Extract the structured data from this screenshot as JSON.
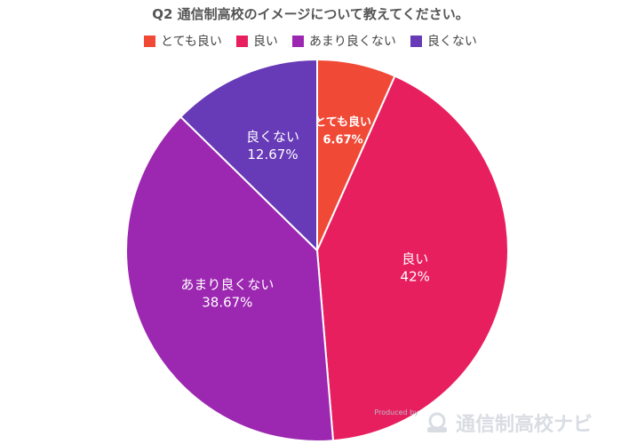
{
  "chart_data": {
    "type": "pie",
    "title": "Q2 通信制高校のイメージについて教えてください。",
    "categories": [
      "とても良い",
      "良い",
      "あまり良くない",
      "良くない"
    ],
    "values": [
      6.67,
      42,
      38.67,
      12.67
    ],
    "value_labels": [
      "6.67%",
      "42%",
      "38.67%",
      "12.67%"
    ],
    "colors": [
      "#f04a37",
      "#e81f5f",
      "#9c27b0",
      "#673ab7"
    ],
    "legend_position": "top",
    "start_angle": "12 o'clock, clockwise"
  },
  "watermark": {
    "brand": "通信制高校ナビ",
    "credit": "Produced by"
  }
}
